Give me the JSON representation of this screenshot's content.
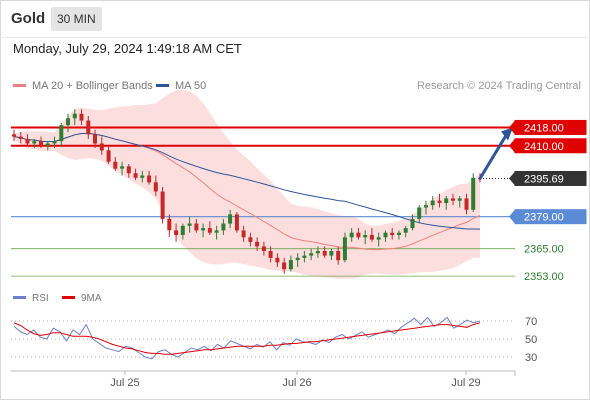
{
  "header": {
    "symbol": "Gold",
    "timeframe": "30 MIN",
    "datetime": "Monday, July 29, 2024 1:49:18 AM CET"
  },
  "legend": {
    "items": [
      {
        "label": "MA 20 + Bollinger Bands",
        "color": "#f08080"
      },
      {
        "label": "MA 50",
        "color": "#2f5597"
      }
    ],
    "credit": "Research © 2024 Trading Central"
  },
  "rsi_legend": {
    "items": [
      {
        "label": "RSI",
        "color": "#6a7fcf"
      },
      {
        "label": "9MA",
        "color": "#e00000"
      }
    ]
  },
  "colors": {
    "up": "#2e7d32",
    "down": "#c62828",
    "resistance": "#e00000",
    "support": "#5b8bd6",
    "neutral": "#6aa84f",
    "price_tag": "#333333",
    "arrow": "#2f5597"
  },
  "chart_data": [
    {
      "type": "candlestick",
      "title": "",
      "x_tick_labels": [
        "Jul 25",
        "Jul 26",
        "Jul 29"
      ],
      "y_range": [
        2350,
        2430
      ],
      "candles": [
        [
          2415,
          2417,
          2412,
          2414
        ],
        [
          2414,
          2416,
          2411,
          2413
        ],
        [
          2413,
          2415,
          2410,
          2411
        ],
        [
          2411,
          2413,
          2409,
          2412
        ],
        [
          2412,
          2414,
          2409,
          2410
        ],
        [
          2410,
          2412,
          2408,
          2411
        ],
        [
          2411,
          2414,
          2409,
          2412
        ],
        [
          2412,
          2420,
          2410,
          2419
        ],
        [
          2419,
          2424,
          2416,
          2422
        ],
        [
          2422,
          2426,
          2419,
          2424
        ],
        [
          2424,
          2426,
          2419,
          2421
        ],
        [
          2421,
          2423,
          2413,
          2415
        ],
        [
          2415,
          2417,
          2409,
          2411
        ],
        [
          2411,
          2414,
          2406,
          2408
        ],
        [
          2408,
          2410,
          2402,
          2403
        ],
        [
          2403,
          2405,
          2399,
          2400
        ],
        [
          2400,
          2403,
          2397,
          2401
        ],
        [
          2401,
          2402,
          2396,
          2398
        ],
        [
          2398,
          2400,
          2395,
          2396
        ],
        [
          2396,
          2399,
          2394,
          2397
        ],
        [
          2397,
          2399,
          2393,
          2394
        ],
        [
          2394,
          2397,
          2388,
          2390
        ],
        [
          2390,
          2392,
          2376,
          2378
        ],
        [
          2378,
          2380,
          2370,
          2373
        ],
        [
          2373,
          2376,
          2368,
          2371
        ],
        [
          2371,
          2376,
          2369,
          2375
        ],
        [
          2375,
          2379,
          2372,
          2376
        ],
        [
          2376,
          2378,
          2372,
          2373
        ],
        [
          2373,
          2376,
          2370,
          2374
        ],
        [
          2374,
          2377,
          2371,
          2372
        ],
        [
          2372,
          2375,
          2369,
          2373
        ],
        [
          2373,
          2378,
          2371,
          2376
        ],
        [
          2376,
          2382,
          2374,
          2380
        ],
        [
          2380,
          2381,
          2372,
          2373
        ],
        [
          2373,
          2375,
          2368,
          2370
        ],
        [
          2370,
          2372,
          2366,
          2368
        ],
        [
          2368,
          2370,
          2364,
          2366
        ],
        [
          2366,
          2368,
          2362,
          2364
        ],
        [
          2364,
          2366,
          2359,
          2361
        ],
        [
          2361,
          2363,
          2357,
          2359
        ],
        [
          2359,
          2361,
          2354,
          2356
        ],
        [
          2356,
          2362,
          2355,
          2360
        ],
        [
          2360,
          2363,
          2357,
          2361
        ],
        [
          2361,
          2364,
          2359,
          2362
        ],
        [
          2362,
          2365,
          2360,
          2363
        ],
        [
          2363,
          2366,
          2361,
          2364
        ],
        [
          2364,
          2366,
          2361,
          2362
        ],
        [
          2362,
          2365,
          2360,
          2364
        ],
        [
          2364,
          2366,
          2358,
          2360
        ],
        [
          2360,
          2372,
          2359,
          2370
        ],
        [
          2370,
          2374,
          2368,
          2372
        ],
        [
          2372,
          2374,
          2369,
          2370
        ],
        [
          2370,
          2373,
          2367,
          2371
        ],
        [
          2371,
          2374,
          2368,
          2369
        ],
        [
          2369,
          2372,
          2366,
          2370
        ],
        [
          2370,
          2373,
          2368,
          2372
        ],
        [
          2372,
          2374,
          2369,
          2371
        ],
        [
          2371,
          2373,
          2369,
          2372
        ],
        [
          2372,
          2375,
          2370,
          2374
        ],
        [
          2374,
          2380,
          2373,
          2378
        ],
        [
          2378,
          2384,
          2376,
          2383
        ],
        [
          2383,
          2386,
          2380,
          2384
        ],
        [
          2384,
          2388,
          2382,
          2386
        ],
        [
          2386,
          2389,
          2383,
          2385
        ],
        [
          2385,
          2388,
          2382,
          2387
        ],
        [
          2387,
          2389,
          2384,
          2386
        ],
        [
          2386,
          2388,
          2383,
          2387
        ],
        [
          2387,
          2389,
          2380,
          2382
        ],
        [
          2382,
          2398,
          2381,
          2396
        ],
        [
          2396,
          2398,
          2394,
          2395.7
        ]
      ],
      "levels": [
        {
          "label": "2418.00",
          "value": 2418.0,
          "kind": "resistance"
        },
        {
          "label": "2410.00",
          "value": 2410.0,
          "kind": "resistance"
        },
        {
          "label": "2379.00",
          "value": 2379.0,
          "kind": "support"
        },
        {
          "label": "2365.00",
          "value": 2365.0,
          "kind": "neutral"
        },
        {
          "label": "2353.00",
          "value": 2353.0,
          "kind": "neutral"
        }
      ],
      "last_price": {
        "label": "2395.69",
        "value": 2395.69
      }
    },
    {
      "type": "line",
      "title": "",
      "y_tick_labels": [
        "70",
        "50",
        "30"
      ],
      "y_range": [
        20,
        80
      ],
      "overbought": 70,
      "oversold": 30,
      "series": [
        {
          "name": "RSI",
          "values": [
            64,
            58,
            55,
            60,
            52,
            50,
            62,
            58,
            48,
            60,
            55,
            66,
            50,
            45,
            40,
            38,
            36,
            42,
            40,
            35,
            30,
            28,
            36,
            38,
            33,
            30,
            35,
            40,
            38,
            42,
            37,
            44,
            40,
            48,
            45,
            42,
            39,
            44,
            41,
            47,
            38,
            46,
            43,
            50,
            47,
            46,
            44,
            49,
            46,
            52,
            55,
            50,
            54,
            58,
            52,
            55,
            57,
            60,
            56,
            63,
            68,
            73,
            66,
            74,
            64,
            68,
            74,
            62,
            66,
            71,
            68,
            70
          ]
        },
        {
          "name": "9MA",
          "values": [
            68,
            65,
            60,
            56,
            54,
            55,
            57,
            57,
            55,
            53,
            53,
            53,
            52,
            50,
            47,
            44,
            42,
            40,
            39,
            37,
            35,
            34,
            34,
            33,
            33,
            34,
            35,
            36,
            37,
            38,
            38,
            39,
            40,
            41,
            42,
            42,
            42,
            42,
            42,
            43,
            43,
            44,
            45,
            45,
            46,
            47,
            47,
            48,
            49,
            50,
            51,
            52,
            53,
            54,
            55,
            56,
            57,
            58,
            59,
            60,
            61,
            62,
            63,
            64,
            65,
            66,
            66,
            65,
            64,
            63,
            66,
            68
          ]
        }
      ]
    }
  ]
}
